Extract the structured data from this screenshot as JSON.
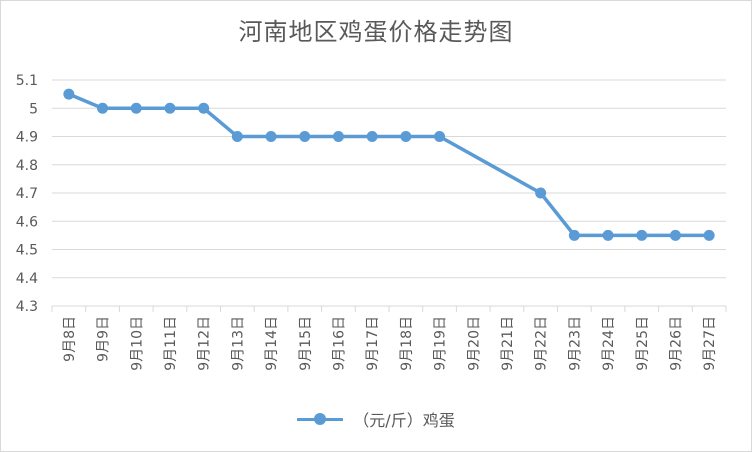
{
  "chart_data": {
    "type": "line",
    "title": "河南地区鸡蛋价格走势图",
    "xlabel": "",
    "ylabel": "",
    "ylim": [
      4.3,
      5.1
    ],
    "yticks": [
      "4.3",
      "4.4",
      "4.5",
      "4.6",
      "4.7",
      "4.8",
      "4.9",
      "5",
      "5.1"
    ],
    "grid": true,
    "legend_position": "bottom",
    "categories": [
      "9月8日",
      "9月9日",
      "9月10日",
      "9月11日",
      "9月12日",
      "9月13日",
      "9月14日",
      "9月15日",
      "9月16日",
      "9月17日",
      "9月18日",
      "9月19日",
      "9月20日",
      "9月21日",
      "9月22日",
      "9月23日",
      "9月24日",
      "9月25日",
      "9月26日",
      "9月27日"
    ],
    "series": [
      {
        "name": "（元/斤）鸡蛋",
        "color": "#5b9bd5",
        "values": [
          5.05,
          5.0,
          5.0,
          5.0,
          5.0,
          4.9,
          4.9,
          4.9,
          4.9,
          4.9,
          4.9,
          4.9,
          null,
          null,
          4.7,
          4.55,
          4.55,
          4.55,
          4.55,
          4.55
        ]
      }
    ]
  }
}
